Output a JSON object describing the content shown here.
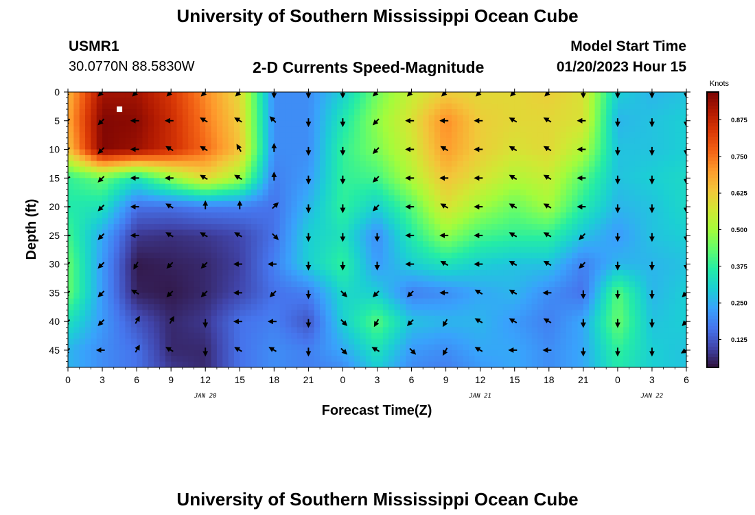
{
  "header": {
    "title": "University of Southern Mississippi Ocean Cube",
    "station_id": "USMR1",
    "station_coords": "30.0770N  88.5830W",
    "plot_title": "2-D Currents Speed-Magnitude",
    "model_start_label": "Model Start Time",
    "model_start_value": "01/20/2023 Hour 15"
  },
  "footer": {
    "title": "University of Southern Mississippi Ocean Cube"
  },
  "chart_data": {
    "type": "heatmap",
    "title": "2-D Currents Speed-Magnitude",
    "xlabel": "Forecast Time(Z)",
    "ylabel": "Depth (ft)",
    "x_ticks": [
      "0",
      "3",
      "6",
      "9",
      "12",
      "15",
      "18",
      "21",
      "0",
      "3",
      "6",
      "9",
      "12",
      "15",
      "18",
      "21",
      "0",
      "3",
      "6"
    ],
    "x_range_hours": [
      0,
      54
    ],
    "date_labels": [
      {
        "label": "JAN 20",
        "hour": 12
      },
      {
        "label": "JAN 21",
        "hour": 36
      },
      {
        "label": "JAN 22",
        "hour": 51
      }
    ],
    "y_ticks": [
      "0",
      "5",
      "10",
      "15",
      "20",
      "25",
      "30",
      "35",
      "40",
      "45"
    ],
    "y_range_ft": [
      0,
      48
    ],
    "colorbar": {
      "label": "Knots",
      "ticks": [
        "0.125",
        "0.250",
        "0.375",
        "0.500",
        "0.625",
        "0.750",
        "0.875"
      ],
      "range": [
        0.03,
        0.97
      ],
      "colors": [
        "#30123b",
        "#4145ab",
        "#4675ed",
        "#39a2fc",
        "#1bcfd4",
        "#24eca6",
        "#61fc6c",
        "#a4fc3b",
        "#d1e834",
        "#f3c63a",
        "#fe9b2d",
        "#f36315",
        "#d93806",
        "#b11901",
        "#7a0403"
      ]
    },
    "columns_hours": [
      0,
      3,
      6,
      9,
      12,
      15,
      18,
      21,
      24,
      27,
      30,
      33,
      36,
      39,
      42,
      45,
      48,
      51,
      54
    ],
    "rows_depth_ft": [
      0,
      5,
      10,
      15,
      20,
      25,
      30,
      35,
      40,
      45,
      48
    ],
    "speed_knots": [
      [
        0.66,
        0.92,
        0.92,
        0.84,
        0.72,
        0.6,
        0.2,
        0.2,
        0.3,
        0.45,
        0.55,
        0.62,
        0.6,
        0.6,
        0.62,
        0.58,
        0.3,
        0.26,
        0.28
      ],
      [
        0.68,
        0.96,
        0.95,
        0.86,
        0.74,
        0.62,
        0.2,
        0.2,
        0.35,
        0.48,
        0.58,
        0.72,
        0.62,
        0.6,
        0.6,
        0.58,
        0.26,
        0.28,
        0.3
      ],
      [
        0.64,
        0.96,
        0.93,
        0.86,
        0.76,
        0.64,
        0.2,
        0.2,
        0.38,
        0.46,
        0.56,
        0.7,
        0.62,
        0.58,
        0.6,
        0.52,
        0.28,
        0.28,
        0.3
      ],
      [
        0.38,
        0.44,
        0.34,
        0.48,
        0.6,
        0.5,
        0.18,
        0.22,
        0.38,
        0.4,
        0.52,
        0.64,
        0.58,
        0.52,
        0.55,
        0.42,
        0.28,
        0.3,
        0.32
      ],
      [
        0.36,
        0.34,
        0.16,
        0.16,
        0.18,
        0.18,
        0.16,
        0.26,
        0.38,
        0.3,
        0.42,
        0.58,
        0.5,
        0.44,
        0.5,
        0.36,
        0.26,
        0.28,
        0.32
      ],
      [
        0.4,
        0.24,
        0.08,
        0.07,
        0.08,
        0.1,
        0.16,
        0.3,
        0.34,
        0.2,
        0.36,
        0.48,
        0.4,
        0.38,
        0.38,
        0.28,
        0.22,
        0.28,
        0.3
      ],
      [
        0.44,
        0.22,
        0.04,
        0.05,
        0.06,
        0.09,
        0.18,
        0.3,
        0.38,
        0.22,
        0.3,
        0.34,
        0.3,
        0.28,
        0.28,
        0.18,
        0.26,
        0.26,
        0.28
      ],
      [
        0.44,
        0.22,
        0.05,
        0.04,
        0.06,
        0.1,
        0.16,
        0.18,
        0.32,
        0.3,
        0.18,
        0.2,
        0.24,
        0.26,
        0.2,
        0.16,
        0.42,
        0.26,
        0.3
      ],
      [
        0.34,
        0.22,
        0.12,
        0.06,
        0.08,
        0.16,
        0.18,
        0.12,
        0.3,
        0.42,
        0.28,
        0.26,
        0.26,
        0.22,
        0.18,
        0.24,
        0.44,
        0.28,
        0.3
      ],
      [
        0.26,
        0.2,
        0.16,
        0.06,
        0.06,
        0.16,
        0.2,
        0.18,
        0.24,
        0.34,
        0.22,
        0.2,
        0.24,
        0.24,
        0.2,
        0.24,
        0.38,
        0.3,
        0.28
      ],
      [
        0.26,
        0.2,
        0.16,
        0.08,
        0.06,
        0.16,
        0.2,
        0.18,
        0.2,
        0.3,
        0.2,
        0.18,
        0.22,
        0.24,
        0.2,
        0.24,
        0.36,
        0.3,
        0.28
      ]
    ],
    "arrow_depths_ft": [
      0,
      5,
      10,
      15,
      20,
      25,
      30,
      35,
      40,
      45
    ],
    "arrow_direction_deg": [
      [
        225,
        225,
        225,
        225,
        225,
        225,
        180,
        180,
        180,
        225,
        225,
        225,
        225,
        225,
        225,
        180,
        180,
        180,
        180
      ],
      [
        225,
        225,
        270,
        270,
        300,
        300,
        315,
        180,
        180,
        225,
        270,
        270,
        270,
        300,
        300,
        270,
        180,
        180,
        180
      ],
      [
        225,
        225,
        270,
        300,
        300,
        330,
        0,
        180,
        180,
        225,
        270,
        300,
        270,
        300,
        300,
        270,
        180,
        180,
        180
      ],
      [
        240,
        225,
        270,
        270,
        300,
        300,
        0,
        180,
        180,
        225,
        270,
        270,
        270,
        300,
        300,
        270,
        180,
        180,
        180
      ],
      [
        270,
        225,
        270,
        300,
        0,
        0,
        45,
        180,
        180,
        225,
        270,
        300,
        270,
        300,
        300,
        270,
        180,
        180,
        180
      ],
      [
        270,
        225,
        270,
        300,
        300,
        300,
        135,
        180,
        180,
        180,
        270,
        270,
        270,
        300,
        300,
        225,
        180,
        180,
        180
      ],
      [
        225,
        225,
        210,
        225,
        225,
        270,
        270,
        180,
        180,
        180,
        270,
        300,
        270,
        300,
        300,
        225,
        180,
        180,
        180
      ],
      [
        225,
        225,
        300,
        225,
        225,
        270,
        225,
        180,
        135,
        225,
        225,
        270,
        300,
        300,
        270,
        180,
        180,
        180,
        225
      ],
      [
        225,
        225,
        30,
        30,
        180,
        270,
        270,
        180,
        135,
        210,
        225,
        210,
        300,
        300,
        300,
        180,
        180,
        180,
        225
      ],
      [
        225,
        270,
        30,
        300,
        180,
        300,
        300,
        180,
        135,
        300,
        135,
        210,
        300,
        270,
        270,
        180,
        180,
        180,
        240
      ]
    ],
    "marker": {
      "hour": 4.5,
      "depth_ft": 3
    }
  }
}
